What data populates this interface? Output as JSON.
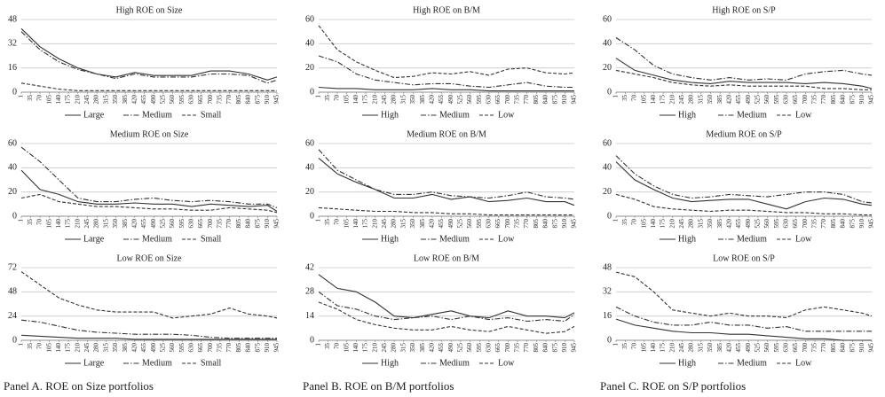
{
  "chart_data": [
    {
      "type": "line",
      "title": "High ROE on Size",
      "x": [
        1,
        70,
        140,
        210,
        280,
        350,
        420,
        490,
        560,
        630,
        700,
        770,
        840,
        910,
        945
      ],
      "xticks": [
        1,
        35,
        70,
        105,
        140,
        175,
        210,
        245,
        280,
        315,
        350,
        385,
        420,
        455,
        490,
        525,
        560,
        595,
        630,
        665,
        700,
        735,
        770,
        805,
        840,
        875,
        910,
        945
      ],
      "xlim": [
        1,
        945
      ],
      "ylim": [
        0,
        48
      ],
      "yticks": [
        0,
        16,
        32,
        48
      ],
      "grid": true,
      "legend": "bottom",
      "series": [
        {
          "name": "Large",
          "color": "#333333",
          "style": "solid",
          "values": [
            42,
            30,
            22,
            16,
            12,
            10,
            13,
            11,
            11,
            11,
            14,
            14,
            12,
            8,
            10
          ]
        },
        {
          "name": "Medium",
          "color": "#333333",
          "style": "dashdot",
          "values": [
            40,
            28,
            20,
            15,
            12,
            9,
            12,
            10,
            10,
            10,
            12,
            12,
            11,
            6,
            8
          ]
        },
        {
          "name": "Small",
          "color": "#333333",
          "style": "dashed",
          "values": [
            6,
            4,
            2,
            1,
            1,
            1,
            1,
            1,
            1,
            1,
            1,
            1,
            1,
            1,
            1
          ]
        }
      ]
    },
    {
      "type": "line",
      "title": "High ROE on B/M",
      "x": [
        1,
        70,
        140,
        210,
        280,
        350,
        420,
        490,
        560,
        630,
        700,
        770,
        840,
        910,
        945
      ],
      "xticks": [
        1,
        35,
        70,
        105,
        140,
        175,
        210,
        245,
        280,
        315,
        350,
        385,
        420,
        455,
        490,
        525,
        560,
        595,
        630,
        665,
        700,
        735,
        770,
        805,
        840,
        875,
        910,
        945
      ],
      "xlim": [
        1,
        945
      ],
      "ylim": [
        0,
        60
      ],
      "yticks": [
        0,
        20,
        40,
        60
      ],
      "grid": true,
      "legend": "bottom",
      "series": [
        {
          "name": "High",
          "color": "#333333",
          "style": "solid",
          "values": [
            4,
            3,
            3,
            2,
            2,
            2,
            3,
            2,
            2,
            1,
            1,
            1,
            1,
            1,
            1
          ]
        },
        {
          "name": "Medium",
          "color": "#333333",
          "style": "dashdot",
          "values": [
            30,
            25,
            15,
            10,
            8,
            6,
            7,
            7,
            5,
            4,
            6,
            8,
            5,
            4,
            4
          ]
        },
        {
          "name": "Low",
          "color": "#333333",
          "style": "dashed",
          "values": [
            55,
            35,
            25,
            18,
            12,
            13,
            16,
            15,
            17,
            14,
            19,
            20,
            16,
            15,
            16
          ]
        }
      ]
    },
    {
      "type": "line",
      "title": "High ROE on S/P",
      "x": [
        1,
        70,
        140,
        210,
        280,
        350,
        420,
        490,
        560,
        630,
        700,
        770,
        840,
        910,
        945
      ],
      "xticks": [
        1,
        35,
        70,
        105,
        140,
        175,
        210,
        245,
        280,
        315,
        350,
        385,
        420,
        455,
        490,
        525,
        560,
        595,
        630,
        665,
        700,
        735,
        770,
        805,
        840,
        875,
        910,
        945
      ],
      "xlim": [
        1,
        945
      ],
      "ylim": [
        0,
        60
      ],
      "yticks": [
        0,
        20,
        40,
        60
      ],
      "grid": true,
      "legend": "bottom",
      "series": [
        {
          "name": "High",
          "color": "#333333",
          "style": "solid",
          "values": [
            28,
            18,
            14,
            10,
            8,
            7,
            9,
            8,
            8,
            8,
            7,
            8,
            7,
            5,
            3
          ]
        },
        {
          "name": "Medium",
          "color": "#333333",
          "style": "dashdot",
          "values": [
            45,
            35,
            22,
            15,
            12,
            10,
            12,
            10,
            11,
            10,
            15,
            17,
            18,
            15,
            14
          ]
        },
        {
          "name": "Low",
          "color": "#333333",
          "style": "dashed",
          "values": [
            18,
            15,
            12,
            8,
            6,
            5,
            6,
            5,
            5,
            5,
            5,
            3,
            3,
            2,
            2
          ]
        }
      ]
    },
    {
      "type": "line",
      "title": "Medium ROE on Size",
      "x": [
        1,
        70,
        140,
        210,
        280,
        350,
        420,
        490,
        560,
        630,
        700,
        770,
        840,
        910,
        945
      ],
      "xticks": [
        1,
        35,
        70,
        105,
        140,
        175,
        210,
        245,
        280,
        315,
        350,
        385,
        420,
        455,
        490,
        525,
        560,
        595,
        630,
        665,
        700,
        735,
        770,
        805,
        840,
        875,
        910,
        945
      ],
      "xlim": [
        1,
        945
      ],
      "ylim": [
        0,
        60
      ],
      "yticks": [
        0,
        20,
        40,
        60
      ],
      "grid": true,
      "legend": "bottom",
      "series": [
        {
          "name": "Large",
          "color": "#333333",
          "style": "solid",
          "values": [
            38,
            22,
            18,
            12,
            10,
            10,
            11,
            10,
            10,
            8,
            10,
            9,
            8,
            9,
            4
          ]
        },
        {
          "name": "Medium",
          "color": "#333333",
          "style": "dashdot",
          "values": [
            57,
            45,
            30,
            15,
            12,
            12,
            14,
            15,
            13,
            12,
            13,
            12,
            10,
            10,
            7
          ]
        },
        {
          "name": "Small",
          "color": "#333333",
          "style": "dashed",
          "values": [
            15,
            18,
            12,
            10,
            8,
            8,
            7,
            6,
            6,
            5,
            5,
            7,
            6,
            5,
            3
          ]
        }
      ]
    },
    {
      "type": "line",
      "title": "Medium ROE on B/M",
      "x": [
        1,
        70,
        140,
        210,
        280,
        350,
        420,
        490,
        560,
        630,
        700,
        770,
        840,
        910,
        945
      ],
      "xticks": [
        1,
        35,
        70,
        105,
        140,
        175,
        210,
        245,
        280,
        315,
        350,
        385,
        420,
        455,
        490,
        525,
        560,
        595,
        630,
        665,
        700,
        735,
        770,
        805,
        840,
        875,
        910,
        945
      ],
      "xlim": [
        1,
        945
      ],
      "ylim": [
        0,
        60
      ],
      "yticks": [
        0,
        20,
        40,
        60
      ],
      "grid": true,
      "legend": "bottom",
      "series": [
        {
          "name": "High",
          "color": "#333333",
          "style": "solid",
          "values": [
            48,
            35,
            28,
            22,
            15,
            15,
            18,
            14,
            16,
            12,
            13,
            15,
            12,
            12,
            9
          ]
        },
        {
          "name": "Medium",
          "color": "#333333",
          "style": "dashdot",
          "values": [
            55,
            38,
            30,
            22,
            18,
            18,
            20,
            17,
            16,
            15,
            17,
            20,
            16,
            15,
            14
          ]
        },
        {
          "name": "Low",
          "color": "#333333",
          "style": "dashed",
          "values": [
            7,
            6,
            5,
            4,
            4,
            3,
            3,
            2,
            2,
            1,
            1,
            1,
            1,
            1,
            1
          ]
        }
      ]
    },
    {
      "type": "line",
      "title": "Medium ROE on S/P",
      "x": [
        1,
        70,
        140,
        210,
        280,
        350,
        420,
        490,
        560,
        630,
        700,
        770,
        840,
        910,
        945
      ],
      "xticks": [
        1,
        35,
        70,
        105,
        140,
        175,
        210,
        245,
        280,
        315,
        350,
        385,
        420,
        455,
        490,
        525,
        560,
        595,
        630,
        665,
        700,
        735,
        770,
        805,
        840,
        875,
        910,
        945
      ],
      "xlim": [
        1,
        945
      ],
      "ylim": [
        0,
        60
      ],
      "yticks": [
        0,
        20,
        40,
        60
      ],
      "grid": true,
      "legend": "bottom",
      "series": [
        {
          "name": "High",
          "color": "#333333",
          "style": "solid",
          "values": [
            45,
            30,
            22,
            15,
            12,
            13,
            14,
            14,
            10,
            6,
            12,
            15,
            14,
            10,
            9
          ]
        },
        {
          "name": "Medium",
          "color": "#333333",
          "style": "dashdot",
          "values": [
            50,
            35,
            25,
            18,
            15,
            16,
            18,
            17,
            16,
            18,
            20,
            20,
            18,
            12,
            11
          ]
        },
        {
          "name": "Low",
          "color": "#333333",
          "style": "dashed",
          "values": [
            18,
            14,
            8,
            6,
            5,
            4,
            5,
            5,
            4,
            3,
            3,
            2,
            2,
            1,
            1
          ]
        }
      ]
    },
    {
      "type": "line",
      "title": "Low ROE on Size",
      "x": [
        1,
        70,
        140,
        210,
        280,
        350,
        420,
        490,
        560,
        630,
        700,
        770,
        840,
        910,
        945
      ],
      "xticks": [
        1,
        35,
        70,
        105,
        140,
        175,
        210,
        245,
        280,
        315,
        350,
        385,
        420,
        455,
        490,
        525,
        560,
        595,
        630,
        665,
        700,
        735,
        770,
        805,
        840,
        875,
        910,
        945
      ],
      "xlim": [
        1,
        945
      ],
      "ylim": [
        0,
        72
      ],
      "yticks": [
        0,
        24,
        48,
        72
      ],
      "grid": true,
      "legend": "bottom",
      "series": [
        {
          "name": "Large",
          "color": "#333333",
          "style": "solid",
          "values": [
            5,
            4,
            3,
            2,
            2,
            2,
            1,
            1,
            1,
            1,
            1,
            1,
            1,
            1,
            1
          ]
        },
        {
          "name": "Medium",
          "color": "#333333",
          "style": "dashdot",
          "values": [
            20,
            18,
            14,
            10,
            8,
            7,
            6,
            6,
            6,
            5,
            3,
            2,
            2,
            2,
            2
          ]
        },
        {
          "name": "Small",
          "color": "#333333",
          "style": "dashed",
          "values": [
            68,
            55,
            42,
            35,
            30,
            28,
            28,
            28,
            22,
            24,
            26,
            32,
            26,
            24,
            22
          ]
        }
      ]
    },
    {
      "type": "line",
      "title": "Low ROE on B/M",
      "x": [
        1,
        70,
        140,
        210,
        280,
        350,
        420,
        490,
        560,
        630,
        700,
        770,
        840,
        910,
        945
      ],
      "xticks": [
        1,
        35,
        70,
        105,
        140,
        175,
        210,
        245,
        280,
        315,
        350,
        385,
        420,
        455,
        490,
        525,
        560,
        595,
        630,
        665,
        700,
        735,
        770,
        805,
        840,
        875,
        910,
        945
      ],
      "xlim": [
        1,
        945
      ],
      "ylim": [
        0,
        42
      ],
      "yticks": [
        0,
        14,
        28,
        42
      ],
      "grid": true,
      "legend": "bottom",
      "series": [
        {
          "name": "High",
          "color": "#333333",
          "style": "solid",
          "values": [
            38,
            30,
            28,
            22,
            14,
            13,
            15,
            17,
            14,
            13,
            17,
            14,
            14,
            13,
            16
          ]
        },
        {
          "name": "Medium",
          "color": "#333333",
          "style": "dashdot",
          "values": [
            28,
            20,
            18,
            14,
            12,
            13,
            14,
            12,
            14,
            12,
            13,
            11,
            12,
            11,
            15
          ]
        },
        {
          "name": "Low",
          "color": "#333333",
          "style": "dashed",
          "values": [
            22,
            18,
            12,
            9,
            7,
            6,
            6,
            8,
            6,
            5,
            8,
            6,
            4,
            5,
            8
          ]
        }
      ]
    },
    {
      "type": "line",
      "title": "Low ROE on S/P",
      "x": [
        1,
        70,
        140,
        210,
        280,
        350,
        420,
        490,
        560,
        630,
        700,
        770,
        840,
        910,
        945
      ],
      "xticks": [
        1,
        35,
        70,
        105,
        140,
        175,
        210,
        245,
        280,
        315,
        350,
        385,
        420,
        455,
        490,
        525,
        560,
        595,
        630,
        665,
        700,
        735,
        770,
        805,
        840,
        875,
        910,
        945
      ],
      "xlim": [
        1,
        945
      ],
      "ylim": [
        0,
        48
      ],
      "yticks": [
        0,
        16,
        32,
        48
      ],
      "grid": true,
      "legend": "bottom",
      "series": [
        {
          "name": "High",
          "color": "#333333",
          "style": "solid",
          "values": [
            14,
            10,
            8,
            6,
            5,
            5,
            4,
            4,
            3,
            2,
            1,
            1,
            0,
            0,
            0
          ]
        },
        {
          "name": "Medium",
          "color": "#333333",
          "style": "dashdot",
          "values": [
            22,
            16,
            12,
            10,
            10,
            12,
            10,
            10,
            8,
            9,
            6,
            6,
            6,
            6,
            6
          ]
        },
        {
          "name": "Low",
          "color": "#333333",
          "style": "dashed",
          "values": [
            45,
            42,
            32,
            20,
            18,
            16,
            18,
            16,
            16,
            15,
            20,
            22,
            20,
            18,
            16
          ]
        }
      ]
    }
  ],
  "captions": [
    "Panel A. ROE on Size portfolios",
    "Panel B. ROE on B/M portfolios",
    "Panel C. ROE on S/P portfolios"
  ]
}
